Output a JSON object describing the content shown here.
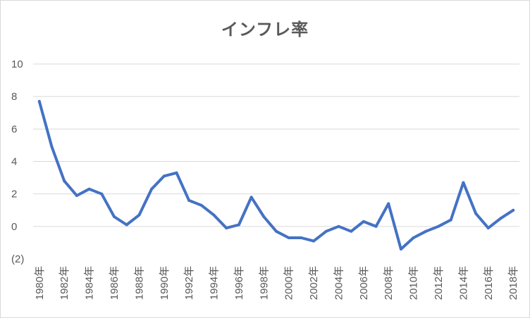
{
  "chart_data": {
    "type": "line",
    "title": "インフレ率",
    "xlabel": "",
    "ylabel": "",
    "ylim": [
      -2,
      10
    ],
    "yticks": [
      10,
      8,
      6,
      4,
      2,
      0,
      -2
    ],
    "ytick_labels": [
      "10",
      "8",
      "6",
      "4",
      "2",
      "0",
      "(2)"
    ],
    "grid": true,
    "legend": "none",
    "line_color": "#4472c4",
    "categories": [
      "1980年",
      "1981年",
      "1982年",
      "1983年",
      "1984年",
      "1985年",
      "1986年",
      "1987年",
      "1988年",
      "1989年",
      "1990年",
      "1991年",
      "1992年",
      "1993年",
      "1994年",
      "1995年",
      "1996年",
      "1997年",
      "1998年",
      "1999年",
      "2000年",
      "2001年",
      "2002年",
      "2003年",
      "2004年",
      "2005年",
      "2006年",
      "2007年",
      "2008年",
      "2009年",
      "2010年",
      "2011年",
      "2012年",
      "2013年",
      "2014年",
      "2015年",
      "2016年",
      "2017年",
      "2018年"
    ],
    "shown_tick_labels": [
      "1980年",
      "1982年",
      "1984年",
      "1986年",
      "1988年",
      "1990年",
      "1992年",
      "1994年",
      "1996年",
      "1998年",
      "2000年",
      "2002年",
      "2004年",
      "2006年",
      "2008年",
      "2010年",
      "2012年",
      "2014年",
      "2016年",
      "2018年"
    ],
    "values": [
      7.7,
      4.9,
      2.8,
      1.9,
      2.3,
      2.0,
      0.6,
      0.1,
      0.7,
      2.3,
      3.1,
      3.3,
      1.6,
      1.3,
      0.7,
      -0.1,
      0.1,
      1.8,
      0.6,
      -0.3,
      -0.7,
      -0.7,
      -0.9,
      -0.3,
      0.0,
      -0.3,
      0.3,
      0.0,
      1.4,
      -1.4,
      -0.7,
      -0.3,
      0.0,
      0.4,
      2.7,
      0.8,
      -0.1,
      0.5,
      1.0
    ]
  }
}
